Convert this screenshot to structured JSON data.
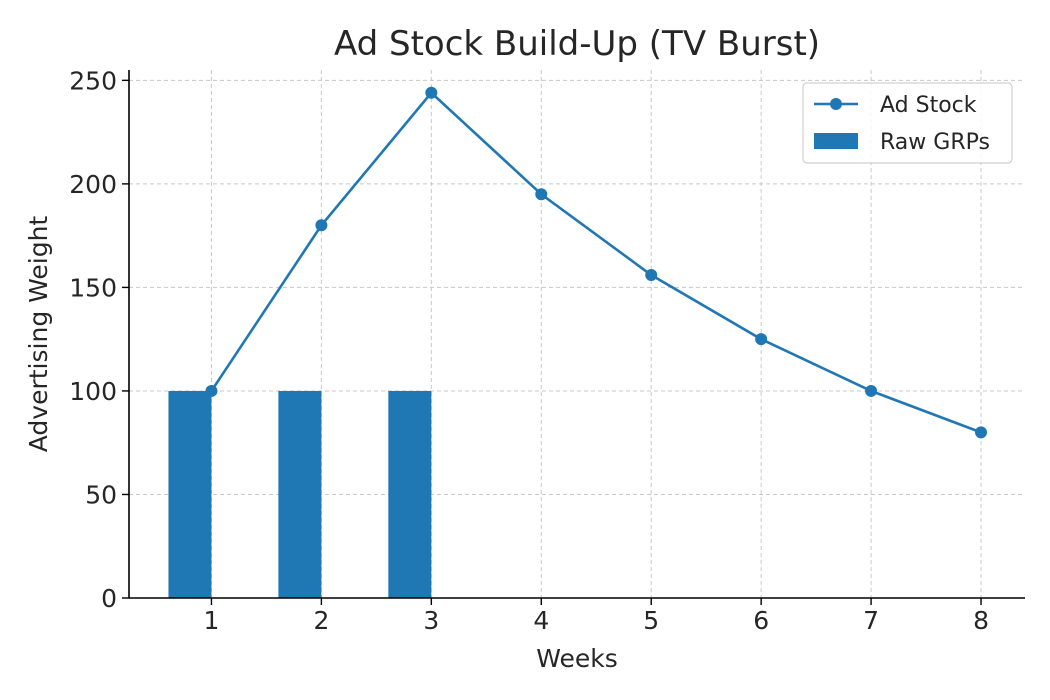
{
  "chart_data": {
    "type": "bar+line",
    "title": "Ad Stock Build-Up (TV Burst)",
    "xlabel": "Weeks",
    "ylabel": "Advertising Weight",
    "x": [
      1,
      2,
      3,
      4,
      5,
      6,
      7,
      8
    ],
    "xlim": [
      0.25,
      8.4
    ],
    "ylim": [
      0,
      255
    ],
    "yticks": [
      0,
      50,
      100,
      150,
      200,
      250
    ],
    "grid": true,
    "legend_position": "top-right",
    "series": [
      {
        "name": "Ad Stock",
        "kind": "line",
        "marker": "circle",
        "color": "#1f77b4",
        "values": [
          100,
          180,
          244,
          195,
          156,
          125,
          100,
          80
        ]
      },
      {
        "name": "Raw GRPs",
        "kind": "bar",
        "color": "#1f77b4",
        "values": [
          100,
          100,
          100,
          0,
          0,
          0,
          0,
          0
        ]
      }
    ]
  }
}
